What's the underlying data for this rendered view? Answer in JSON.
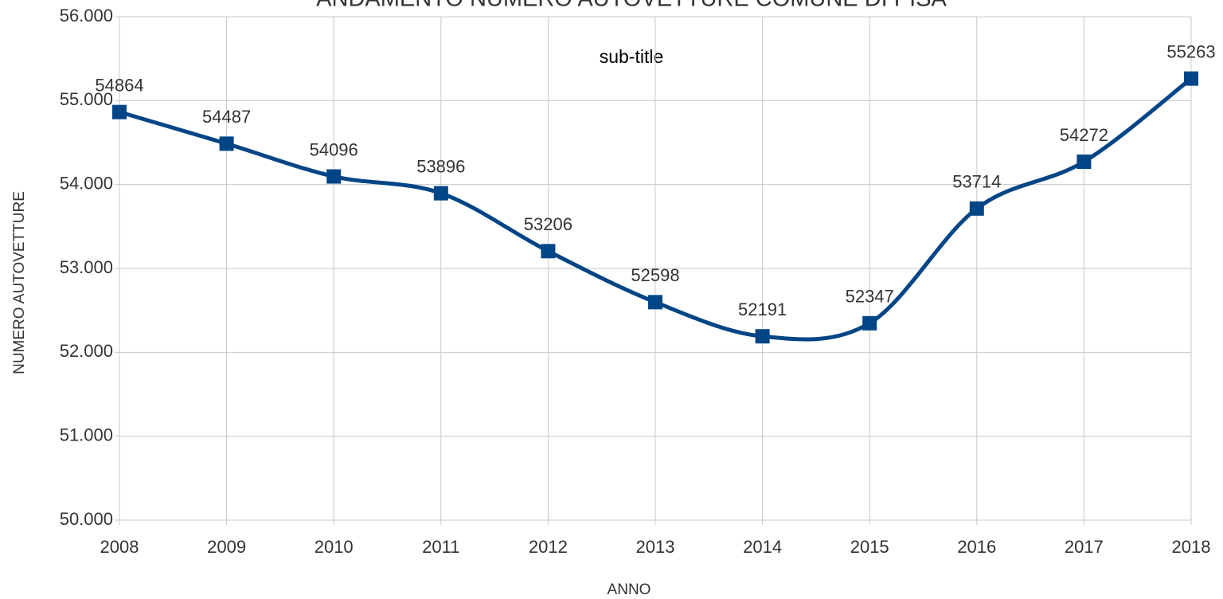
{
  "chart_data": {
    "type": "line",
    "title": "ANDAMENTO NUMERO AUTOVETTURE COMUNE DI PISA",
    "subtitle": "sub-title",
    "x_label": "ANNO",
    "y_label": "NUMERO AUTOVETTURE",
    "x": [
      2008,
      2009,
      2010,
      2011,
      2012,
      2013,
      2014,
      2015,
      2016,
      2017,
      2018
    ],
    "xlim": [
      2008,
      2018
    ],
    "xticks": [
      2008,
      2009,
      2010,
      2011,
      2012,
      2013,
      2014,
      2015,
      2016,
      2017,
      2018
    ],
    "ylim": [
      50000,
      56000
    ],
    "yticks": [
      {
        "value": 50000,
        "label": "50.000"
      },
      {
        "value": 51000,
        "label": "51.000"
      },
      {
        "value": 52000,
        "label": "52.000"
      },
      {
        "value": 53000,
        "label": "53.000"
      },
      {
        "value": 54000,
        "label": "54.000"
      },
      {
        "value": 55000,
        "label": "55.000"
      },
      {
        "value": 56000,
        "label": "56.000"
      }
    ],
    "grid": true,
    "smooth": true,
    "series": [
      {
        "name": "NUMERO AUTOVETTURE",
        "color": "#004586",
        "values": [
          54864,
          54487,
          54096,
          53896,
          53206,
          52598,
          52191,
          52347,
          53714,
          54272,
          55263
        ]
      }
    ]
  }
}
